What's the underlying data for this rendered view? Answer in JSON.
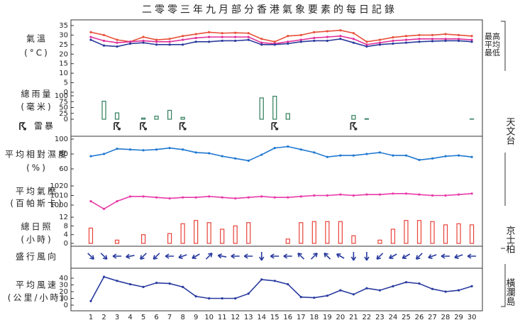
{
  "title": "二零零三年九月部分香港氣象要素的每日記錄",
  "stations": [
    "天文台",
    "京士柏",
    "橫瀾島"
  ],
  "x": [
    1,
    2,
    3,
    4,
    5,
    6,
    7,
    8,
    9,
    10,
    11,
    12,
    13,
    14,
    15,
    16,
    17,
    18,
    19,
    20,
    21,
    22,
    23,
    24,
    25,
    26,
    27,
    28,
    29,
    30
  ],
  "chart_data": [
    {
      "type": "line",
      "ylabel": [
        "氣溫",
        "(°C)"
      ],
      "ylim": [
        0,
        35
      ],
      "yticks": [
        0,
        5,
        10,
        15,
        20,
        25,
        30,
        35
      ],
      "series": [
        {
          "name": "最高",
          "color": "#e8503a",
          "values": [
            31.5,
            30,
            27.5,
            26.5,
            29,
            27.5,
            28,
            29.5,
            30.5,
            31.5,
            31,
            31.2,
            31,
            28,
            26.5,
            29.5,
            30,
            31.5,
            32,
            32.5,
            31,
            26.5,
            27.5,
            28.8,
            29.5,
            30,
            30,
            30.5,
            30,
            29.5
          ]
        },
        {
          "name": "平均",
          "color": "#e0309a",
          "values": [
            29,
            27,
            26,
            26.5,
            27,
            26.5,
            26.5,
            27.5,
            28.5,
            29,
            29,
            29,
            29,
            26,
            25.5,
            26.5,
            27.5,
            28.5,
            29,
            29.5,
            28,
            25,
            26,
            27,
            27.5,
            28,
            28,
            28,
            28,
            27.5
          ]
        },
        {
          "name": "最低",
          "color": "#2b3a9c",
          "values": [
            27.5,
            24.5,
            24,
            25.5,
            26,
            25,
            25,
            25,
            26.5,
            26.5,
            27,
            27,
            27.5,
            25,
            25,
            25.5,
            26.5,
            27,
            27,
            28,
            26,
            24,
            25,
            25.5,
            26,
            26.5,
            26.8,
            27,
            27,
            26.5
          ]
        }
      ]
    },
    {
      "type": "bar",
      "ylabel": [
        "總雨量",
        "(毫米)"
      ],
      "ylim": [
        0,
        100
      ],
      "yticks": [
        0,
        25,
        50,
        75,
        100
      ],
      "color": "#2e7d5b",
      "values": [
        0,
        77,
        27,
        0,
        5,
        13,
        38,
        8,
        0,
        0,
        0,
        0,
        0,
        91,
        98,
        24,
        0,
        0,
        0,
        0,
        16,
        2,
        0,
        0,
        0,
        0,
        0,
        0,
        0,
        1
      ]
    },
    {
      "type": "event",
      "label": "雷暴",
      "color": "#333333",
      "days": [
        3,
        5,
        8,
        15,
        21
      ]
    },
    {
      "type": "line",
      "ylabel": [
        "平均相對濕度",
        "(%)"
      ],
      "ylim": [
        60,
        100
      ],
      "yticks": [
        60,
        80,
        100
      ],
      "series": [
        {
          "color": "#1f78d1",
          "values": [
            77,
            80,
            87,
            86,
            85,
            86,
            88,
            86,
            82,
            81,
            77,
            74,
            71,
            79,
            88,
            90,
            86,
            82,
            76,
            78,
            78,
            80,
            82,
            78,
            78,
            72,
            74,
            77,
            78,
            76
          ]
        }
      ]
    },
    {
      "type": "line",
      "ylabel": [
        "平均氣壓",
        "(百帕斯卡)"
      ],
      "ylim": [
        990,
        1025
      ],
      "yticks": [
        1000,
        1010,
        1020
      ],
      "series": [
        {
          "color": "#e83aa8",
          "values": [
            1004,
            996,
            1004,
            1009,
            1009,
            1008,
            1007,
            1008,
            1008,
            1009,
            1008,
            1007,
            1008,
            1009,
            1008,
            1008,
            1009,
            1010,
            1010,
            1011,
            1010,
            1011,
            1011,
            1012,
            1012,
            1011,
            1010,
            1010,
            1011,
            1012
          ]
        }
      ]
    },
    {
      "type": "bar",
      "ylabel": [
        "總日照",
        "(小時)"
      ],
      "ylim": [
        0,
        13
      ],
      "yticks": [
        0,
        4,
        8,
        12
      ],
      "color": "#e8433a",
      "values": [
        7,
        0,
        1.5,
        0,
        4,
        0,
        4.5,
        9,
        10.5,
        9.5,
        6.5,
        8,
        9.5,
        0,
        0,
        2,
        9.5,
        10,
        10,
        10,
        3.5,
        0,
        1.5,
        6.5,
        10.5,
        10.5,
        10,
        8.5,
        9,
        8.5
      ]
    },
    {
      "type": "arrows",
      "label": "盛行風向",
      "color": "#2a3ba0",
      "values": [
        315,
        315,
        90,
        80,
        45,
        45,
        90,
        70,
        60,
        225,
        100,
        90,
        90,
        0,
        90,
        90,
        135,
        225,
        135,
        120,
        0,
        0,
        45,
        60,
        60,
        45,
        70,
        90,
        70,
        90
      ]
    },
    {
      "type": "line",
      "ylabel": [
        "平均風速",
        "(公里/小時)"
      ],
      "ylim": [
        0,
        45
      ],
      "yticks": [
        0,
        10,
        20,
        30,
        40
      ],
      "series": [
        {
          "color": "#2a3ba0",
          "values": [
            6,
            42,
            36,
            31,
            27,
            33,
            32,
            27,
            13,
            10,
            10,
            10,
            17,
            38,
            36,
            31,
            12,
            11,
            14,
            22,
            16,
            25,
            22,
            28,
            34,
            32,
            24,
            20,
            22,
            28
          ]
        }
      ]
    }
  ]
}
